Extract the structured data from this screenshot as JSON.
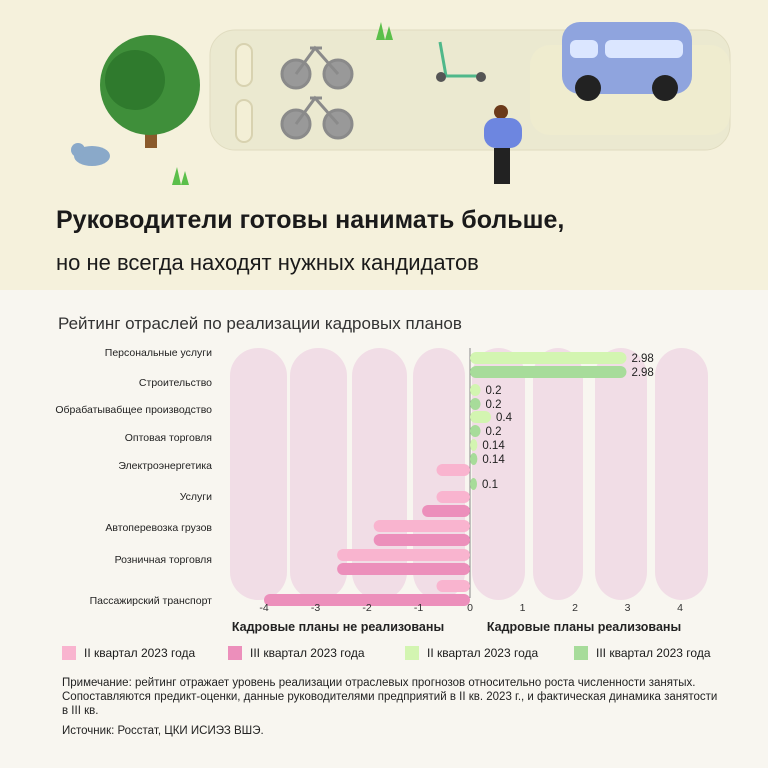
{
  "header": {
    "title": "Руководители готовы нанимать больше,",
    "subtitle": "но не всегда находят нужных кандидатов"
  },
  "chart_data": {
    "type": "bar",
    "orientation": "horizontal",
    "title": "Рейтинг отраслей по реализации кадровых планов",
    "categories": [
      "Персональные услуги",
      "Строительство",
      "Обрабатывабщее производство",
      "Оптовая торговля",
      "Электроэнергетика",
      "Услуги",
      "Автоперевозка грузов",
      "Розничная торговля",
      "Пассажирский транспорт"
    ],
    "series": [
      {
        "name": "II квартал 2023 года",
        "values": [
          2.98,
          0.2,
          0.4,
          0.14,
          -0.65,
          -0.65,
          -1.87,
          -2.58,
          -0.65
        ]
      },
      {
        "name": "III квартал 2023 года",
        "values": [
          2.98,
          0.2,
          0.2,
          0.14,
          0.1,
          -0.93,
          -1.87,
          -2.58,
          -4.0
        ]
      }
    ],
    "data_labels_positive_only": true,
    "xticks": [
      "-4",
      "-3",
      "-2",
      "-1",
      "0",
      "1",
      "2",
      "3",
      "4"
    ],
    "xlim": [
      -4,
      4
    ],
    "xlabel_left": "Кадровые планы не реализованы",
    "xlabel_right": "Кадровые планы реализованы",
    "colors": {
      "neg_q2": "#f9b4cf",
      "neg_q3": "#ec8fbb",
      "pos_q2": "#d3f5b1",
      "pos_q3": "#a7dc9a",
      "band": "#f1dde6"
    }
  },
  "legend": [
    {
      "label": "II квартал 2023 года",
      "color": "#f9b4cf"
    },
    {
      "label": "III квартал 2023 года",
      "color": "#ec8fbb"
    },
    {
      "label": "II квартал 2023 года",
      "color": "#d3f5b1"
    },
    {
      "label": "III квартал 2023 года",
      "color": "#a7dc9a"
    }
  ],
  "note": "Примечание: рейтинг отражает уровень реализации отраслевых прогнозов относительно роста численности занятых. Сопоставляются предикт-оценки, данные руководителями предприятий в II кв. 2023 г., и фактическая динамика занятости в III кв.",
  "source": "Источник: Росстат, ЦКИ ИСИЭЗ ВШЭ."
}
